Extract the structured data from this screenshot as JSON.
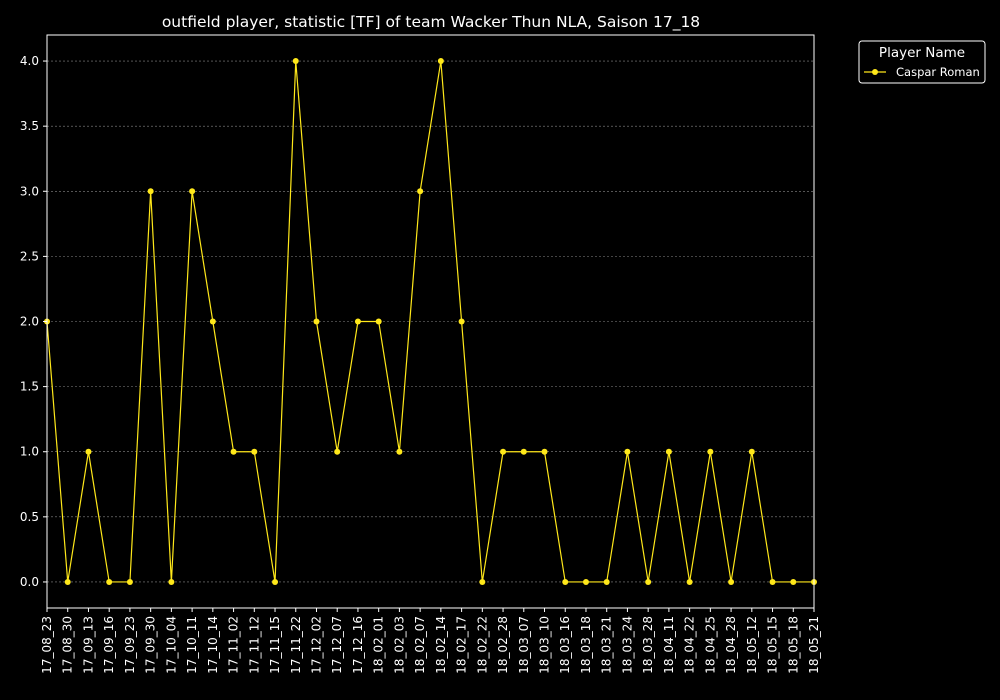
{
  "chart_data": {
    "type": "line",
    "title": "outfield player, statistic [TF] of team Wacker Thun NLA, Saison 17_18",
    "xlabel": "",
    "ylabel": "",
    "categories": [
      "17_08_23",
      "17_08_30",
      "17_09_13",
      "17_09_16",
      "17_09_23",
      "17_09_30",
      "17_10_04",
      "17_10_11",
      "17_10_14",
      "17_11_02",
      "17_11_12",
      "17_11_15",
      "17_11_22",
      "17_12_02",
      "17_12_07",
      "17_12_16",
      "18_02_01",
      "18_02_03",
      "18_02_07",
      "18_02_14",
      "18_02_17",
      "18_02_22",
      "18_02_28",
      "18_03_07",
      "18_03_10",
      "18_03_16",
      "18_03_18",
      "18_03_21",
      "18_03_24",
      "18_03_28",
      "18_04_11",
      "18_04_22",
      "18_04_25",
      "18_04_28",
      "18_05_12",
      "18_05_15",
      "18_05_18",
      "18_05_21"
    ],
    "series": [
      {
        "name": "Caspar Roman",
        "color": "#ffe81a",
        "values": [
          2,
          0,
          1,
          0,
          0,
          3,
          0,
          3,
          2,
          1,
          1,
          0,
          4,
          2,
          1,
          2,
          2,
          1,
          3,
          4,
          2,
          0,
          1,
          1,
          1,
          0,
          0,
          0,
          1,
          0,
          1,
          0,
          1,
          0,
          1,
          0,
          0,
          0
        ]
      }
    ],
    "ylim": [
      -0.2,
      4.2
    ],
    "yticks": [
      "0.0",
      "0.5",
      "1.0",
      "1.5",
      "2.0",
      "2.5",
      "3.0",
      "3.5",
      "4.0"
    ],
    "grid": true,
    "legend": {
      "title": "Player Name",
      "placement": "top-right-outside"
    },
    "colors": {
      "background": "#000000",
      "axes": "#ffffff",
      "grid": "#888888"
    }
  }
}
